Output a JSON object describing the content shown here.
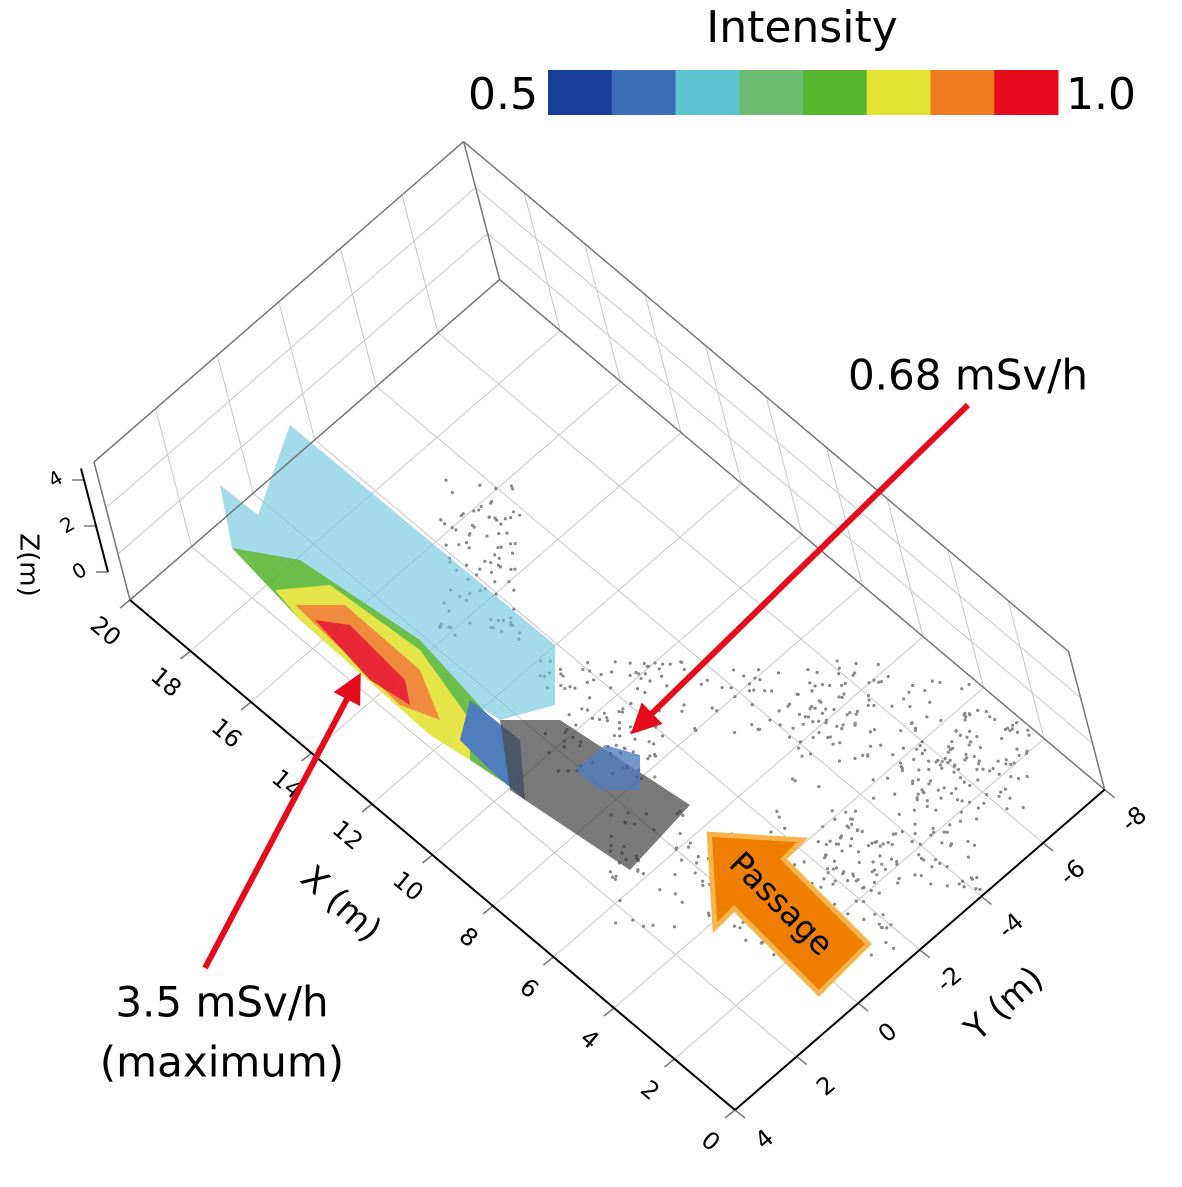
{
  "chart_data": {
    "type": "surface3d",
    "colorbar": {
      "title": "Intensity",
      "clim": [
        0.5,
        1.0
      ],
      "ticks": [
        0.5,
        {
          "value": 1,
          "label": "1.0"
        }
      ],
      "colors": [
        "#173f98",
        "#386cb4",
        "#5cc3d0",
        "#6cbc72",
        "#58b532",
        "#e2e232",
        "#ee7a22",
        "#e60b1b"
      ]
    },
    "xlabel": "X (m)",
    "ylabel": "Y (m)",
    "zlabel": "Z(m)",
    "xlim": [
      0,
      20
    ],
    "xticks": [
      0,
      2,
      4,
      6,
      8,
      10,
      12,
      14,
      16,
      18,
      20
    ],
    "ylim": [
      4,
      -8
    ],
    "yticks": [
      4,
      2,
      0,
      -2,
      -4,
      -6,
      -8
    ],
    "zlim": [
      0,
      6
    ],
    "zticks": [
      0,
      2,
      4
    ],
    "grid": true,
    "annotations": [
      {
        "text": "0.68 mSv/h"
      },
      {
        "text": [
          "3.5 mSv/h",
          "(maximum)"
        ]
      },
      {
        "text": "Passage"
      }
    ]
  }
}
